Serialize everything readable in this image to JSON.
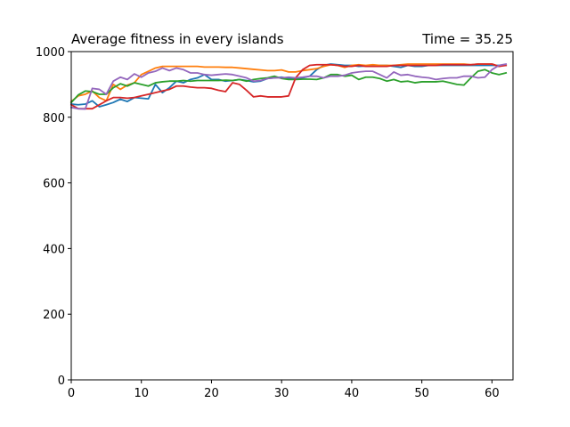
{
  "chart_data": {
    "type": "line",
    "title": "Average fitness in every islands",
    "time_label": "Time = 35.25",
    "xlabel": "",
    "ylabel": "",
    "xlim": [
      0,
      63
    ],
    "ylim": [
      0,
      1000
    ],
    "xticks": [
      0,
      10,
      20,
      30,
      40,
      50,
      60
    ],
    "yticks": [
      0,
      200,
      400,
      600,
      800,
      1000
    ],
    "grid": false,
    "x": [
      0,
      1,
      2,
      3,
      4,
      5,
      6,
      7,
      8,
      9,
      10,
      11,
      12,
      13,
      14,
      15,
      16,
      17,
      18,
      19,
      20,
      21,
      22,
      23,
      24,
      25,
      26,
      27,
      28,
      29,
      30,
      31,
      32,
      33,
      34,
      35,
      36,
      37,
      38,
      39,
      40,
      41,
      42,
      43,
      44,
      45,
      46,
      47,
      48,
      49,
      50,
      51,
      52,
      53,
      54,
      55,
      56,
      57,
      58,
      59,
      60,
      61,
      62
    ],
    "series": [
      {
        "color": "#1f77b4",
        "values": [
          840,
          838,
          840,
          850,
          832,
          838,
          845,
          855,
          848,
          860,
          858,
          856,
          900,
          875,
          890,
          910,
          905,
          915,
          920,
          930,
          915,
          915,
          910,
          912,
          915,
          912,
          908,
          910,
          918,
          920,
          922,
          918,
          918,
          920,
          925,
          945,
          958,
          962,
          960,
          958,
          958,
          955,
          956,
          956,
          958,
          958,
          955,
          952,
          958,
          955,
          955,
          958,
          958,
          958,
          958,
          958,
          958,
          958,
          958,
          958,
          958,
          958,
          958
        ]
      },
      {
        "color": "#ff7f0e",
        "values": [
          848,
          865,
          870,
          880,
          860,
          850,
          900,
          885,
          898,
          905,
          930,
          940,
          950,
          955,
          955,
          955,
          955,
          955,
          955,
          953,
          953,
          953,
          952,
          952,
          950,
          948,
          946,
          944,
          942,
          942,
          944,
          938,
          938,
          942,
          945,
          948,
          955,
          960,
          958,
          952,
          958,
          960,
          958,
          960,
          958,
          958,
          958,
          960,
          962,
          962,
          962,
          962,
          962,
          962,
          962,
          962,
          962,
          960,
          962,
          962,
          962,
          955,
          960
        ]
      },
      {
        "color": "#2ca02c",
        "values": [
          845,
          868,
          880,
          878,
          870,
          870,
          890,
          902,
          895,
          905,
          900,
          895,
          905,
          908,
          910,
          910,
          912,
          910,
          912,
          912,
          912,
          912,
          913,
          912,
          915,
          910,
          915,
          918,
          920,
          925,
          918,
          915,
          915,
          916,
          916,
          915,
          920,
          930,
          930,
          925,
          928,
          915,
          922,
          922,
          918,
          910,
          915,
          908,
          910,
          905,
          908,
          908,
          908,
          910,
          905,
          900,
          898,
          920,
          940,
          945,
          935,
          930,
          935
        ]
      },
      {
        "color": "#d62728",
        "values": [
          838,
          826,
          826,
          826,
          838,
          850,
          860,
          860,
          858,
          860,
          865,
          870,
          875,
          880,
          885,
          895,
          895,
          892,
          890,
          890,
          888,
          882,
          878,
          905,
          900,
          882,
          862,
          865,
          862,
          862,
          862,
          865,
          920,
          945,
          958,
          960,
          960,
          960,
          958,
          955,
          955,
          958,
          955,
          955,
          955,
          955,
          958,
          958,
          958,
          958,
          958,
          958,
          958,
          960,
          960,
          960,
          960,
          960,
          962,
          962,
          962,
          955,
          958
        ]
      },
      {
        "color": "#9467bd",
        "values": [
          830,
          826,
          825,
          888,
          885,
          870,
          910,
          922,
          915,
          932,
          922,
          935,
          940,
          950,
          942,
          950,
          945,
          935,
          935,
          930,
          928,
          930,
          932,
          930,
          925,
          920,
          910,
          912,
          918,
          920,
          920,
          922,
          920,
          922,
          925,
          925,
          920,
          925,
          925,
          928,
          935,
          938,
          940,
          940,
          930,
          920,
          938,
          928,
          930,
          925,
          922,
          920,
          915,
          918,
          920,
          920,
          925,
          925,
          920,
          922,
          945,
          958,
          962
        ]
      }
    ]
  }
}
